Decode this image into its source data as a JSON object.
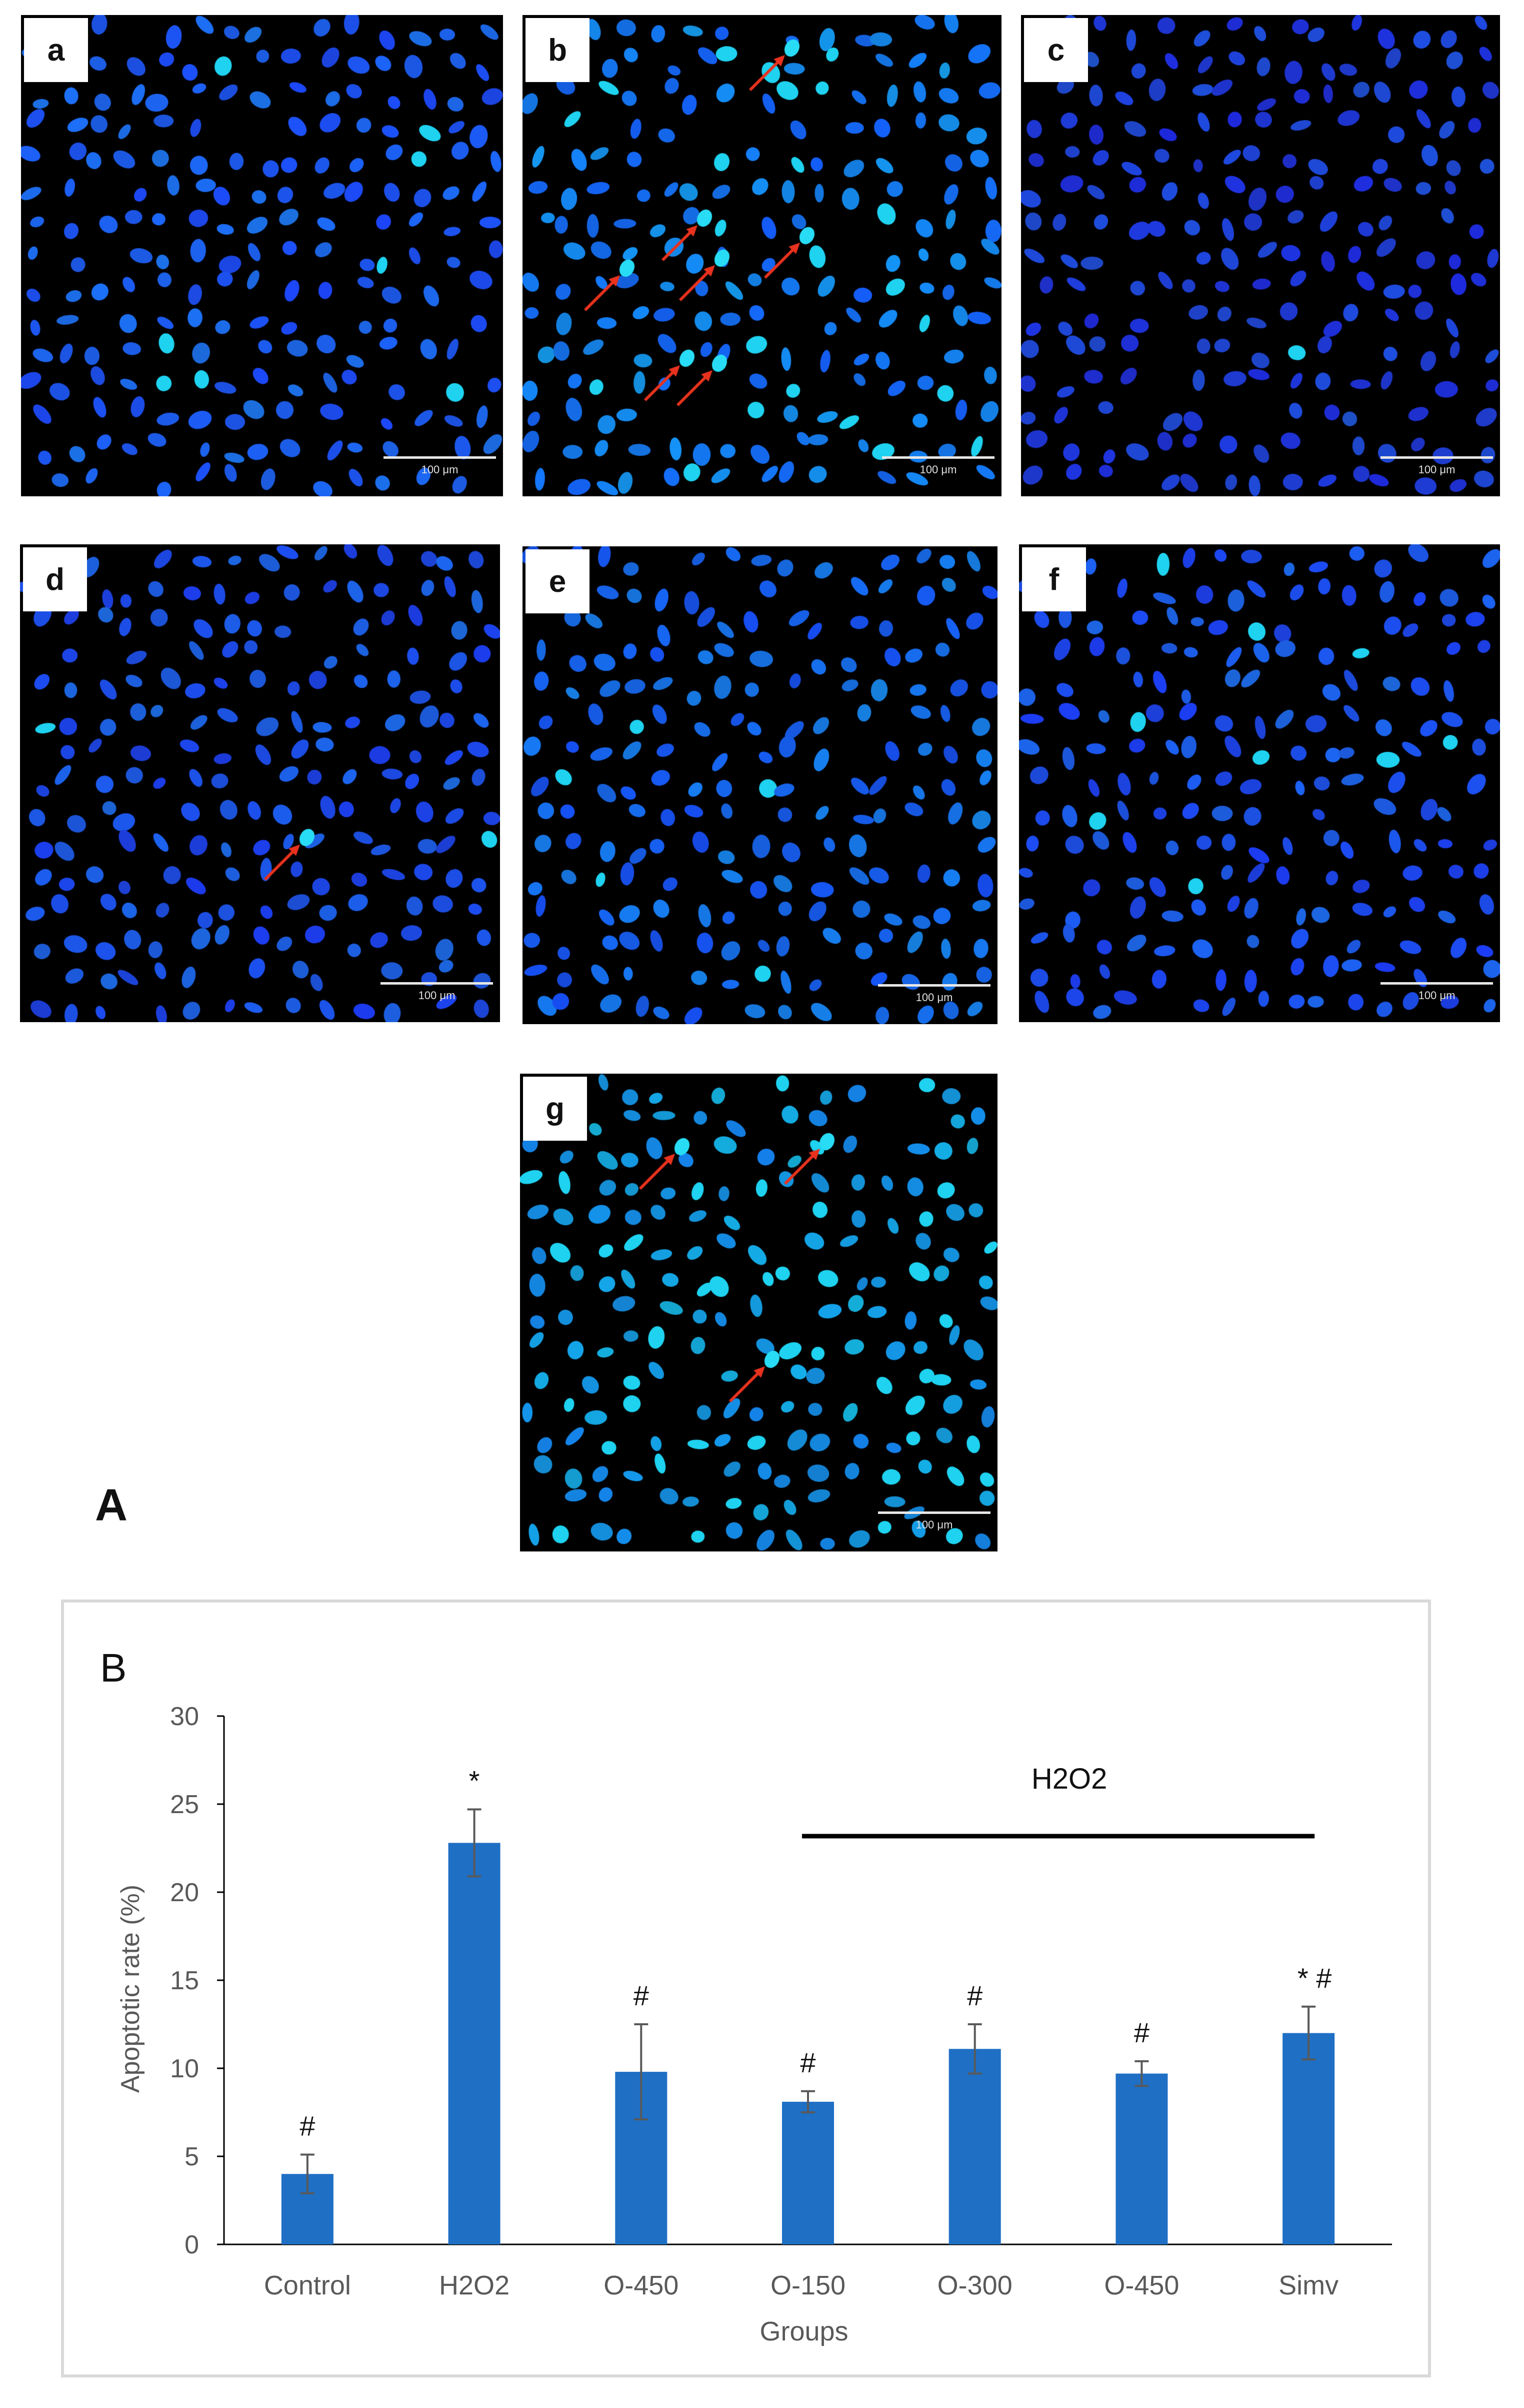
{
  "figure": {
    "part_a_label": "A",
    "panels": [
      {
        "label": "a",
        "scale": "100 μm",
        "arrows": 0
      },
      {
        "label": "b",
        "scale": "100 μm",
        "arrows": 7
      },
      {
        "label": "c",
        "scale": "100 μm",
        "arrows": 0
      },
      {
        "label": "d",
        "scale": "100 μm",
        "arrows": 1
      },
      {
        "label": "e",
        "scale": "100 μm",
        "arrows": 0
      },
      {
        "label": "f",
        "scale": "100 μm",
        "arrows": 0
      },
      {
        "label": "g",
        "scale": "100 μm",
        "arrows": 3
      }
    ]
  },
  "chart_data": {
    "type": "bar",
    "panel_label": "B",
    "title": "",
    "xlabel": "Groups",
    "ylabel": "Apoptotic rate (%)",
    "ylim": [
      0,
      30
    ],
    "yticks": [
      "0",
      "5",
      "10",
      "15",
      "20",
      "25",
      "30"
    ],
    "categories": [
      "Control",
      "H2O2",
      "O-450",
      "O-150",
      "O-300",
      "O-450",
      "Simv"
    ],
    "values": [
      4.0,
      22.8,
      9.8,
      8.1,
      11.1,
      9.7,
      12.0
    ],
    "errors": [
      1.1,
      1.9,
      2.7,
      0.6,
      1.4,
      0.7,
      1.5
    ],
    "significance": [
      "#",
      "*",
      "#",
      "#",
      "#",
      "#",
      "* #"
    ],
    "group_annotation": {
      "label": "H2O2",
      "from_category": 3,
      "to_category": 6
    },
    "bar_color": "#1f6fc5",
    "error_color": "#595959",
    "grid": false,
    "legend": "none"
  }
}
